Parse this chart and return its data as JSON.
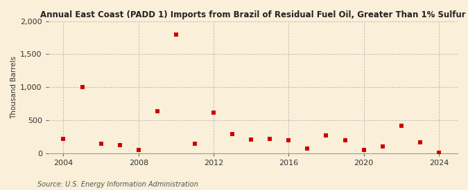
{
  "title": "Annual East Coast (PADD 1) Imports from Brazil of Residual Fuel Oil, Greater Than 1% Sulfur",
  "ylabel": "Thousand Barrels",
  "source": "Source: U.S. Energy Information Administration",
  "background_color": "#faefd8",
  "plot_background_color": "#faefd8",
  "marker_color": "#cc0000",
  "marker_size": 4,
  "xlim": [
    2003.2,
    2025.0
  ],
  "ylim": [
    0,
    2000
  ],
  "xticks": [
    2004,
    2008,
    2012,
    2016,
    2020,
    2024
  ],
  "yticks": [
    0,
    500,
    1000,
    1500,
    2000
  ],
  "years": [
    2004,
    2005,
    2006,
    2007,
    2008,
    2009,
    2010,
    2011,
    2012,
    2013,
    2014,
    2015,
    2016,
    2017,
    2018,
    2019,
    2020,
    2021,
    2022,
    2023,
    2024
  ],
  "values": [
    220,
    1000,
    145,
    120,
    45,
    640,
    1800,
    140,
    615,
    285,
    205,
    220,
    195,
    70,
    270,
    195,
    45,
    105,
    415,
    160,
    5
  ]
}
